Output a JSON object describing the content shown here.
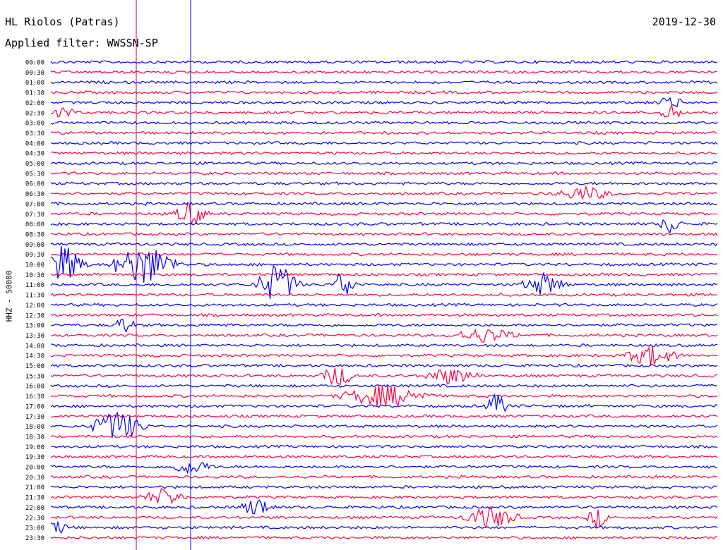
{
  "header": {
    "station": "HL Riolos (Patras)",
    "date": "2019-12-30",
    "filter": "Applied filter: WWSSN-SP"
  },
  "chart_data": {
    "type": "line",
    "title": "HL Riolos (Patras)",
    "ylabel": "HHZ - 50000",
    "time_labels": [
      "00:00",
      "00:30",
      "01:00",
      "01:30",
      "02:00",
      "02:30",
      "03:00",
      "03:30",
      "04:00",
      "04:30",
      "05:00",
      "05:30",
      "06:00",
      "06:30",
      "07:00",
      "07:30",
      "08:00",
      "08:30",
      "09:00",
      "09:30",
      "10:00",
      "10:30",
      "11:00",
      "11:30",
      "12:00",
      "12:30",
      "13:00",
      "13:30",
      "14:00",
      "14:30",
      "15:00",
      "15:30",
      "16:00",
      "16:30",
      "17:00",
      "17:30",
      "18:00",
      "18:30",
      "19:00",
      "19:30",
      "20:00",
      "20:30",
      "21:00",
      "21:30",
      "22:00",
      "22:30",
      "23:00",
      "23:30"
    ],
    "trace_colors": [
      "#0000ff",
      "#ff0040"
    ],
    "events": [
      {
        "row": 4,
        "t": 0.93,
        "amp": 12,
        "dur": 0.02
      },
      {
        "row": 5,
        "t": 0.02,
        "amp": 10,
        "dur": 0.02
      },
      {
        "row": 5,
        "t": 0.93,
        "amp": 12,
        "dur": 0.02
      },
      {
        "row": 13,
        "t": 0.8,
        "amp": 10,
        "dur": 0.05
      },
      {
        "row": 15,
        "t": 0.21,
        "amp": 18,
        "dur": 0.03
      },
      {
        "row": 16,
        "t": 0.93,
        "amp": 14,
        "dur": 0.02
      },
      {
        "row": 20,
        "t": 0.02,
        "amp": 28,
        "dur": 0.04
      },
      {
        "row": 20,
        "t": 0.14,
        "amp": 30,
        "dur": 0.06
      },
      {
        "row": 22,
        "t": 0.34,
        "amp": 30,
        "dur": 0.04
      },
      {
        "row": 22,
        "t": 0.44,
        "amp": 24,
        "dur": 0.02
      },
      {
        "row": 22,
        "t": 0.74,
        "amp": 16,
        "dur": 0.04
      },
      {
        "row": 26,
        "t": 0.11,
        "amp": 12,
        "dur": 0.02
      },
      {
        "row": 27,
        "t": 0.65,
        "amp": 10,
        "dur": 0.06
      },
      {
        "row": 29,
        "t": 0.9,
        "amp": 14,
        "dur": 0.05
      },
      {
        "row": 31,
        "t": 0.6,
        "amp": 12,
        "dur": 0.05
      },
      {
        "row": 31,
        "t": 0.43,
        "amp": 16,
        "dur": 0.03
      },
      {
        "row": 33,
        "t": 0.5,
        "amp": 16,
        "dur": 0.08
      },
      {
        "row": 34,
        "t": 0.67,
        "amp": 18,
        "dur": 0.02
      },
      {
        "row": 36,
        "t": 0.1,
        "amp": 22,
        "dur": 0.05
      },
      {
        "row": 40,
        "t": 0.21,
        "amp": 10,
        "dur": 0.04
      },
      {
        "row": 43,
        "t": 0.17,
        "amp": 12,
        "dur": 0.04
      },
      {
        "row": 44,
        "t": 0.31,
        "amp": 14,
        "dur": 0.03
      },
      {
        "row": 45,
        "t": 0.66,
        "amp": 16,
        "dur": 0.05
      },
      {
        "row": 45,
        "t": 0.82,
        "amp": 14,
        "dur": 0.02
      },
      {
        "row": 46,
        "t": 0.01,
        "amp": 10,
        "dur": 0.02
      }
    ]
  }
}
